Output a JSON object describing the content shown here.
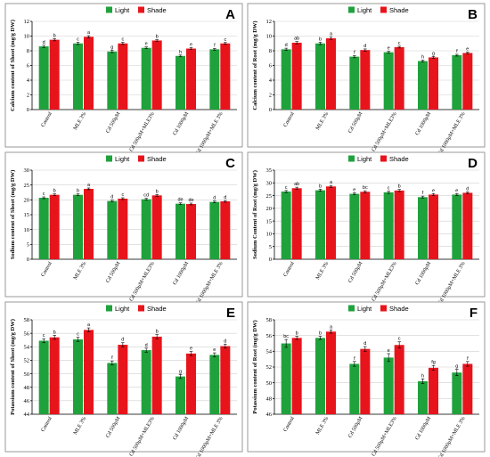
{
  "colors": {
    "light": "#1fa23c",
    "shade": "#e8141c"
  },
  "legend": {
    "light": "Light",
    "shade": "Shade"
  },
  "chart_data": [
    {
      "id": "A",
      "type": "bar",
      "ylabel": "Calcium content of Shoot (mg/g DW)",
      "ylim": [
        0,
        12
      ],
      "yticks": [
        0,
        2,
        4,
        6,
        8,
        10,
        12
      ],
      "grid": true,
      "legend_position": "top",
      "categories": [
        "Control",
        "MLE 3%",
        "Cd 500μM",
        "Cd 500μM+MLE3%",
        "Cd 1000μM",
        "Cd 1000μM+MLE 3%"
      ],
      "series": [
        {
          "name": "Light",
          "values": [
            8.6,
            9.0,
            7.9,
            8.4,
            7.3,
            8.2
          ],
          "errors": [
            0.15,
            0.15,
            0.15,
            0.12,
            0.12,
            0.12
          ],
          "letters": [
            "d",
            "c",
            "g",
            "e",
            "h",
            "f"
          ]
        },
        {
          "name": "Shade",
          "values": [
            9.5,
            9.9,
            9.0,
            9.4,
            8.3,
            9.0
          ],
          "errors": [
            0.15,
            0.15,
            0.15,
            0.12,
            0.12,
            0.12
          ],
          "letters": [
            "b",
            "a",
            "c",
            "b",
            "e",
            "c"
          ]
        }
      ]
    },
    {
      "id": "B",
      "type": "bar",
      "ylabel": "Calcium content of Root (mg/g DW)",
      "ylim": [
        0,
        12
      ],
      "yticks": [
        0,
        2,
        4,
        6,
        8,
        10,
        12
      ],
      "grid": true,
      "legend_position": "top",
      "categories": [
        "Control",
        "MLE 3%",
        "Cd 500μM",
        "Cd 500μM+MLE3%",
        "Cd 1000μM",
        "Cd 1000μM+MLE 3%"
      ],
      "series": [
        {
          "name": "Light",
          "values": [
            8.2,
            9.0,
            7.2,
            7.8,
            6.6,
            7.4
          ],
          "errors": [
            0.15,
            0.15,
            0.15,
            0.12,
            0.12,
            0.12
          ],
          "letters": [
            "d",
            "b",
            "f",
            "e",
            "h",
            "f"
          ]
        },
        {
          "name": "Shade",
          "values": [
            9.1,
            9.7,
            8.1,
            8.5,
            7.1,
            7.7
          ],
          "errors": [
            0.15,
            0.15,
            0.15,
            0.12,
            0.12,
            0.12
          ],
          "letters": [
            "ab",
            "a",
            "d",
            "c",
            "g",
            "e"
          ]
        }
      ]
    },
    {
      "id": "C",
      "type": "bar",
      "ylabel": "Sodium content of Shoot (mg/g DW)",
      "ylim": [
        0,
        30
      ],
      "yticks": [
        0,
        5,
        10,
        15,
        20,
        25,
        30
      ],
      "grid": true,
      "legend_position": "top",
      "categories": [
        "Control",
        "MLE 3%",
        "Cd 500μM",
        "Cd 500μM+MLE3%",
        "Cd 1000μM",
        "Cd 1000μM+MLE 3%"
      ],
      "series": [
        {
          "name": "Light",
          "values": [
            20.7,
            21.7,
            19.6,
            20.2,
            18.7,
            19.3
          ],
          "errors": [
            0.3,
            0.3,
            0.3,
            0.3,
            0.3,
            0.3
          ],
          "letters": [
            "c",
            "b",
            "d",
            "cd",
            "de",
            "d"
          ]
        },
        {
          "name": "Shade",
          "values": [
            21.7,
            23.7,
            20.4,
            21.5,
            18.6,
            19.5
          ],
          "errors": [
            0.3,
            0.3,
            0.3,
            0.3,
            0.3,
            0.3
          ],
          "letters": [
            "b",
            "a",
            "c",
            "b",
            "de",
            "d"
          ]
        }
      ]
    },
    {
      "id": "D",
      "type": "bar",
      "ylabel": "Sodium Content of Root (mg/g DW)",
      "ylim": [
        0,
        35
      ],
      "yticks": [
        0,
        5,
        10,
        15,
        20,
        25,
        30,
        35
      ],
      "grid": true,
      "legend_position": "top",
      "categories": [
        "Control",
        "MLE 3%",
        "Cd 500μM",
        "Cd 500μM+MLE3%",
        "Cd 1000μM",
        "Cd 1000μM+MLE 3%"
      ],
      "series": [
        {
          "name": "Light",
          "values": [
            26.6,
            27.1,
            25.7,
            26.3,
            24.4,
            25.4
          ],
          "errors": [
            0.4,
            0.4,
            0.4,
            0.4,
            0.4,
            0.4
          ],
          "letters": [
            "c",
            "b",
            "e",
            "c",
            "f",
            "e"
          ]
        },
        {
          "name": "Shade",
          "values": [
            27.9,
            28.6,
            26.5,
            27.0,
            25.4,
            26.1
          ],
          "errors": [
            0.4,
            0.4,
            0.4,
            0.4,
            0.4,
            0.4
          ],
          "letters": [
            "ab",
            "a",
            "bc",
            "b",
            "e",
            "d"
          ]
        }
      ]
    },
    {
      "id": "E",
      "type": "bar",
      "ylabel": "Potassium content of Shoot (mg/g DW)",
      "ylim": [
        44,
        58
      ],
      "yticks": [
        44,
        46,
        48,
        50,
        52,
        54,
        56,
        58
      ],
      "grid": true,
      "legend_position": "top",
      "categories": [
        "Control",
        "MLE 3%",
        "Cd 500μM",
        "Cd 500μM+MLE3%",
        "Cd 1000μM",
        "Cd 1000μM+MLE 3%"
      ],
      "series": [
        {
          "name": "Light",
          "values": [
            54.9,
            55.1,
            51.6,
            53.5,
            49.6,
            52.8
          ],
          "errors": [
            0.3,
            0.3,
            0.3,
            0.3,
            0.3,
            0.3
          ],
          "letters": [
            "c",
            "c",
            "f",
            "d",
            "g",
            "e"
          ]
        },
        {
          "name": "Shade",
          "values": [
            55.4,
            56.5,
            54.3,
            55.5,
            53.0,
            54.1
          ],
          "errors": [
            0.3,
            0.3,
            0.3,
            0.3,
            0.3,
            0.3
          ],
          "letters": [
            "b",
            "a",
            "d",
            "b",
            "e",
            "d"
          ]
        }
      ]
    },
    {
      "id": "F",
      "type": "bar",
      "ylabel": "Potassium content of Root (mg/g DW)",
      "ylim": [
        46,
        58
      ],
      "yticks": [
        46,
        48,
        50,
        52,
        54,
        56,
        58
      ],
      "grid": true,
      "legend_position": "top",
      "categories": [
        "Control",
        "MLE 3%",
        "Cd 500μM",
        "Cd 500μM+MLE3%",
        "Cd 1000μM",
        "Cd 1000μM+MLE 3%"
      ],
      "series": [
        {
          "name": "Light",
          "values": [
            55.0,
            55.7,
            52.4,
            53.2,
            50.2,
            51.3
          ],
          "errors": [
            0.5,
            0.2,
            0.3,
            0.5,
            0.3,
            0.4
          ],
          "letters": [
            "bc",
            "b",
            "f",
            "e",
            "h",
            "g"
          ]
        },
        {
          "name": "Shade",
          "values": [
            55.7,
            56.5,
            54.3,
            54.8,
            51.9,
            52.4
          ],
          "errors": [
            0.2,
            0.2,
            0.3,
            0.4,
            0.3,
            0.3
          ],
          "letters": [
            "b",
            "a",
            "d",
            "c",
            "fg",
            "f"
          ]
        }
      ]
    }
  ]
}
